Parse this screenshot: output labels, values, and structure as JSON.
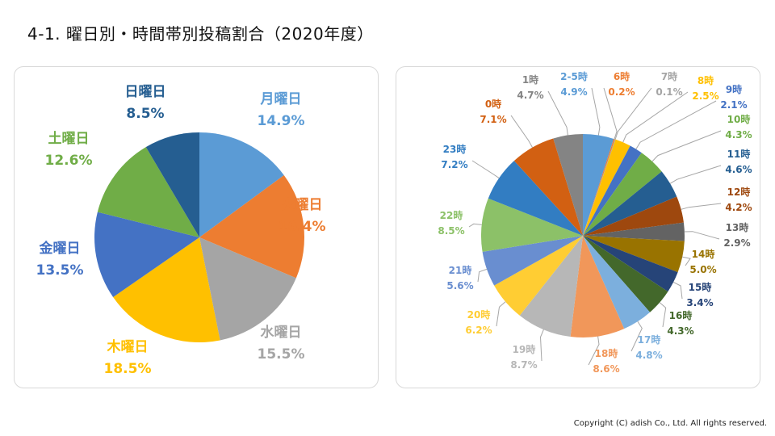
{
  "page": {
    "title": "4-1. 曜日別・時間帯別投稿割合（2020年度）",
    "copyright": "Copyright (C) adish Co., Ltd. All rights reserved."
  },
  "chart_data": [
    {
      "type": "pie",
      "title": "",
      "categories": [
        "月曜日",
        "火曜日",
        "水曜日",
        "木曜日",
        "金曜日",
        "土曜日",
        "日曜日"
      ],
      "values": [
        14.9,
        16.4,
        15.5,
        18.5,
        13.5,
        12.6,
        8.5
      ],
      "value_labels": [
        "14.9%",
        "16.4%",
        "15.5%",
        "18.5%",
        "13.5%",
        "12.6%",
        "8.5%"
      ],
      "colors": [
        "#5b9bd5",
        "#ed7d31",
        "#a5a5a5",
        "#ffc000",
        "#4472c4",
        "#70ad47",
        "#255e91"
      ],
      "start_angle": "12 o'clock, clockwise"
    },
    {
      "type": "pie",
      "title": "",
      "categories": [
        "2-5時",
        "6時",
        "7時",
        "8時",
        "9時",
        "10時",
        "11時",
        "12時",
        "13時",
        "14時",
        "15時",
        "16時",
        "17時",
        "18時",
        "19時",
        "20時",
        "21時",
        "22時",
        "23時",
        "0時",
        "1時"
      ],
      "values": [
        4.9,
        0.2,
        0.1,
        2.5,
        2.1,
        4.3,
        4.6,
        4.2,
        2.9,
        5.0,
        3.4,
        4.3,
        4.8,
        8.6,
        8.7,
        6.2,
        5.6,
        8.5,
        7.2,
        7.1,
        4.7
      ],
      "value_labels": [
        "4.9%",
        "0.2%",
        "0.1%",
        "2.5%",
        "2.1%",
        "4.3%",
        "4.6%",
        "4.2%",
        "2.9%",
        "5.0%",
        "3.4%",
        "4.3%",
        "4.8%",
        "8.6%",
        "8.7%",
        "6.2%",
        "5.6%",
        "8.5%",
        "7.2%",
        "7.1%",
        "4.7%"
      ],
      "colors": [
        "#5b9bd5",
        "#ed7d31",
        "#a5a5a5",
        "#ffc000",
        "#4472c4",
        "#70ad47",
        "#255e91",
        "#9e480e",
        "#636363",
        "#997300",
        "#264478",
        "#43682b",
        "#7cafdd",
        "#f1975a",
        "#b7b7b7",
        "#ffcd33",
        "#698ed0",
        "#8cc168",
        "#327dc2",
        "#d26012",
        "#848484"
      ],
      "start_angle": "12 o'clock, clockwise"
    }
  ]
}
